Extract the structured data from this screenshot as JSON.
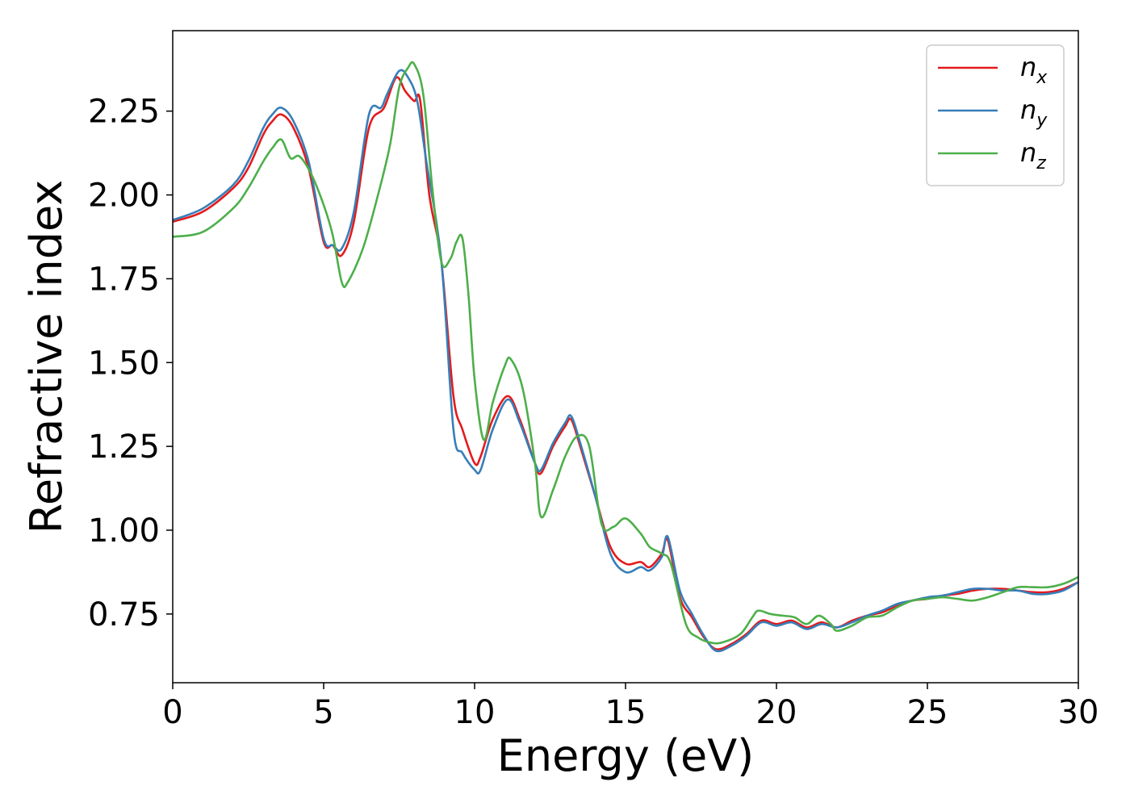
{
  "chart_data": {
    "type": "line",
    "title": "",
    "xlabel": "Energy (eV)",
    "ylabel": "Refractive index",
    "xlim": [
      0,
      30
    ],
    "ylim": [
      0.545,
      2.49
    ],
    "xticks": [
      0,
      5,
      10,
      15,
      20,
      25,
      30
    ],
    "xtick_labels": [
      "0",
      "5",
      "10",
      "15",
      "20",
      "25",
      "30"
    ],
    "yticks": [
      0.75,
      1.0,
      1.25,
      1.5,
      1.75,
      2.0,
      2.25
    ],
    "ytick_labels": [
      "0.75",
      "1.00",
      "1.25",
      "1.50",
      "1.75",
      "2.00",
      "2.25"
    ],
    "grid": false,
    "legend_position": "top-right",
    "series": [
      {
        "name": "n_x",
        "label_main": "n",
        "label_sub": "x",
        "color": "#e41a1c",
        "x": [
          0,
          1,
          2,
          2.5,
          3,
          3.3,
          3.6,
          4.0,
          4.5,
          5.0,
          5.3,
          5.6,
          6.0,
          6.5,
          7.0,
          7.4,
          7.7,
          8.0,
          8.2,
          8.5,
          8.9,
          9.3,
          9.6,
          10.0,
          10.2,
          10.6,
          11.1,
          11.5,
          12.0,
          12.2,
          12.6,
          13.0,
          13.2,
          13.5,
          14.0,
          14.5,
          15.0,
          15.5,
          15.8,
          16.2,
          16.4,
          16.8,
          17.2,
          17.6,
          18.0,
          18.5,
          19.0,
          19.5,
          20.0,
          20.5,
          21.0,
          21.5,
          22.0,
          22.5,
          23.0,
          23.5,
          24.0,
          24.5,
          25.0,
          25.5,
          26.0,
          26.5,
          27.0,
          27.5,
          28.0,
          28.5,
          29.0,
          29.5,
          30.0
        ],
        "y": [
          1.92,
          1.95,
          2.02,
          2.08,
          2.18,
          2.22,
          2.24,
          2.2,
          2.08,
          1.86,
          1.85,
          1.82,
          1.92,
          2.2,
          2.26,
          2.35,
          2.31,
          2.28,
          2.28,
          2.0,
          1.8,
          1.4,
          1.3,
          1.2,
          1.22,
          1.33,
          1.4,
          1.33,
          1.2,
          1.17,
          1.25,
          1.31,
          1.33,
          1.25,
          1.1,
          0.95,
          0.9,
          0.905,
          0.89,
          0.93,
          0.97,
          0.8,
          0.74,
          0.68,
          0.645,
          0.66,
          0.69,
          0.73,
          0.72,
          0.73,
          0.71,
          0.725,
          0.71,
          0.73,
          0.745,
          0.755,
          0.775,
          0.79,
          0.795,
          0.805,
          0.81,
          0.82,
          0.825,
          0.825,
          0.82,
          0.815,
          0.815,
          0.825,
          0.845
        ]
      },
      {
        "name": "n_y",
        "label_main": "n",
        "label_sub": "y",
        "color": "#377eb8",
        "x": [
          0,
          1,
          2,
          2.5,
          3,
          3.3,
          3.6,
          4.0,
          4.5,
          5.0,
          5.3,
          5.6,
          6.0,
          6.5,
          6.9,
          7.1,
          7.5,
          7.8,
          8.1,
          8.4,
          8.9,
          9.3,
          9.6,
          10.0,
          10.2,
          10.6,
          11.1,
          11.5,
          12.0,
          12.2,
          12.6,
          13.0,
          13.2,
          13.5,
          14.0,
          14.5,
          15.0,
          15.5,
          15.8,
          16.2,
          16.4,
          16.8,
          17.2,
          17.6,
          18.0,
          18.5,
          19.0,
          19.5,
          20.0,
          20.5,
          21.0,
          21.5,
          22.0,
          22.5,
          23.0,
          23.5,
          24.0,
          24.5,
          25.0,
          25.5,
          26.0,
          26.5,
          27.0,
          27.5,
          28.0,
          28.5,
          29.0,
          29.5,
          30.0
        ],
        "y": [
          1.925,
          1.96,
          2.03,
          2.1,
          2.2,
          2.24,
          2.26,
          2.22,
          2.1,
          1.87,
          1.85,
          1.84,
          1.95,
          2.24,
          2.26,
          2.3,
          2.37,
          2.35,
          2.28,
          2.1,
          1.8,
          1.3,
          1.23,
          1.18,
          1.18,
          1.3,
          1.39,
          1.32,
          1.2,
          1.18,
          1.26,
          1.32,
          1.34,
          1.26,
          1.1,
          0.93,
          0.875,
          0.89,
          0.88,
          0.92,
          0.98,
          0.82,
          0.75,
          0.685,
          0.64,
          0.655,
          0.685,
          0.725,
          0.715,
          0.725,
          0.705,
          0.72,
          0.71,
          0.725,
          0.745,
          0.76,
          0.78,
          0.79,
          0.8,
          0.805,
          0.815,
          0.825,
          0.825,
          0.82,
          0.82,
          0.81,
          0.81,
          0.82,
          0.845
        ]
      },
      {
        "name": "n_z",
        "label_main": "n",
        "label_sub": "z",
        "color": "#4daf4a",
        "x": [
          0,
          1,
          2,
          2.5,
          3,
          3.3,
          3.6,
          3.9,
          4.2,
          4.6,
          5.0,
          5.3,
          5.6,
          5.8,
          6.3,
          6.8,
          7.2,
          7.5,
          7.8,
          8.0,
          8.3,
          8.6,
          8.9,
          9.2,
          9.4,
          9.6,
          9.8,
          10.0,
          10.3,
          10.6,
          11.0,
          11.2,
          11.6,
          12.0,
          12.2,
          12.6,
          13.0,
          13.4,
          13.8,
          14.2,
          14.6,
          15.0,
          15.5,
          15.8,
          16.2,
          16.5,
          17.0,
          17.4,
          17.8,
          18.2,
          18.8,
          19.2,
          19.4,
          19.8,
          20.2,
          20.6,
          21.0,
          21.4,
          21.8,
          22.0,
          22.5,
          23.0,
          23.5,
          24.0,
          24.5,
          25.0,
          25.5,
          26.0,
          26.5,
          27.0,
          27.5,
          28.0,
          28.5,
          29.0,
          29.5,
          30.0
        ],
        "y": [
          1.875,
          1.89,
          1.96,
          2.02,
          2.1,
          2.14,
          2.165,
          2.11,
          2.115,
          2.06,
          1.97,
          1.88,
          1.74,
          1.74,
          1.84,
          2.0,
          2.15,
          2.32,
          2.38,
          2.39,
          2.3,
          2.02,
          1.8,
          1.81,
          1.86,
          1.87,
          1.7,
          1.45,
          1.27,
          1.38,
          1.49,
          1.51,
          1.42,
          1.2,
          1.04,
          1.12,
          1.22,
          1.28,
          1.25,
          1.02,
          1.01,
          1.035,
          0.99,
          0.95,
          0.93,
          0.9,
          0.72,
          0.68,
          0.665,
          0.665,
          0.69,
          0.74,
          0.76,
          0.75,
          0.745,
          0.74,
          0.72,
          0.745,
          0.72,
          0.7,
          0.715,
          0.74,
          0.745,
          0.77,
          0.79,
          0.795,
          0.8,
          0.795,
          0.79,
          0.8,
          0.815,
          0.83,
          0.83,
          0.83,
          0.84,
          0.86
        ]
      }
    ]
  }
}
